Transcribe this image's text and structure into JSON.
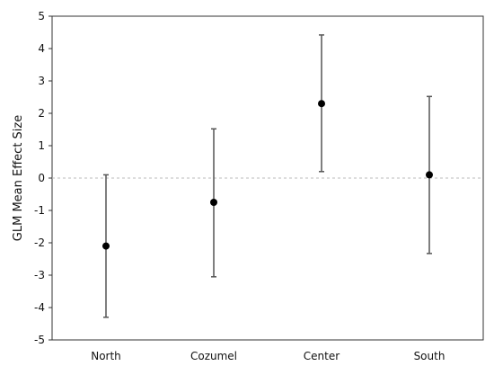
{
  "chart_data": {
    "type": "scatter",
    "title": "",
    "xlabel": "",
    "ylabel": "GLM Mean Effect Size",
    "ylim": [
      -5,
      5
    ],
    "yticks": [
      5,
      4,
      3,
      2,
      1,
      0,
      -1,
      -2,
      -3,
      -4,
      -5
    ],
    "grid": false,
    "reference_line": {
      "y": 0,
      "style": "dashed"
    },
    "legend": "none",
    "categories": [
      "North",
      "Cozumel",
      "Center",
      "South"
    ],
    "series": [
      {
        "values": [
          -2.1,
          -0.75,
          2.3,
          0.1
        ],
        "error_low": [
          -4.3,
          -3.05,
          0.2,
          -2.33
        ],
        "error_high": [
          0.1,
          1.52,
          4.42,
          2.52
        ]
      }
    ],
    "colors": {
      "point": "#000000",
      "error_bar": "#555555",
      "axis": "#333333",
      "zero_line": "#bbbbbb"
    }
  }
}
